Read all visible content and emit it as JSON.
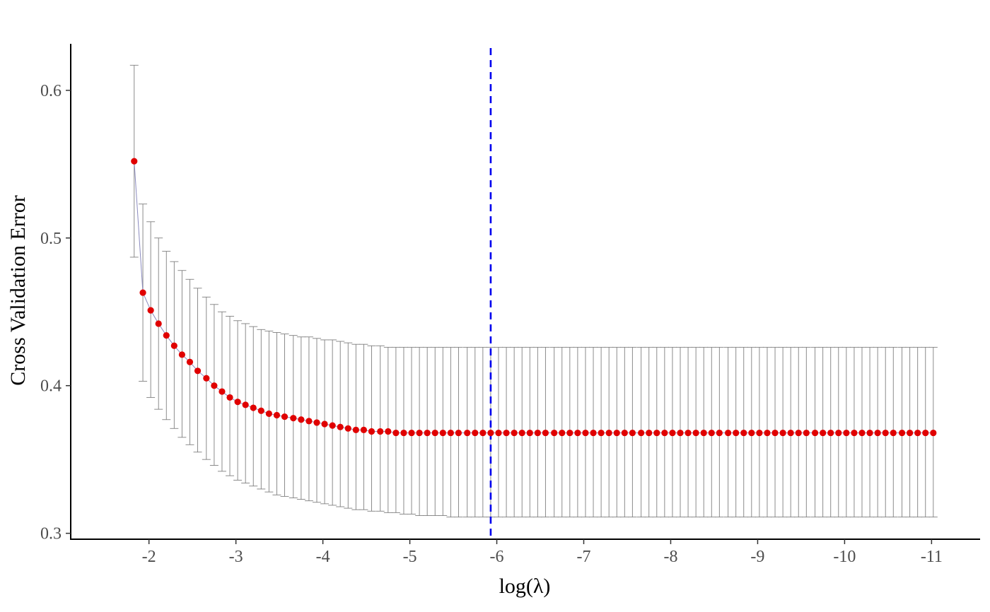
{
  "chart_data": {
    "type": "scatter",
    "title": "",
    "xlabel": "log(λ)",
    "ylabel": "Cross Validation Error",
    "x_axis": {
      "reversed": true,
      "range": [
        -1.1,
        -11.55
      ],
      "ticks": [
        -2,
        -3,
        -4,
        -5,
        -6,
        -7,
        -8,
        -9,
        -10,
        -11
      ],
      "tick_labels": [
        "-2",
        "-3",
        "-4",
        "-5",
        "-6",
        "-7",
        "-8",
        "-9",
        "-10",
        "-11"
      ]
    },
    "y_axis": {
      "range": [
        0.296,
        0.6315
      ],
      "ticks": [
        0.3,
        0.4,
        0.5,
        0.6
      ],
      "tick_labels": [
        "0.3",
        "0.4",
        "0.5",
        "0.6"
      ]
    },
    "grid": false,
    "legend": "none",
    "reference_line": {
      "x": -5.93,
      "style": "dashed",
      "color": "#0000ee"
    },
    "colors": {
      "points": "#e00000",
      "error_bars": "#7f7f7f",
      "connector": "#8b8bbf",
      "axes": "#000000",
      "tick_labels": "#4d4d4d"
    },
    "series": [
      {
        "x": [
          -1.83,
          -1.93,
          -2.02,
          -2.11,
          -2.2,
          -2.29,
          -2.38,
          -2.47,
          -2.56,
          -2.66,
          -2.75,
          -2.84,
          -2.93,
          -3.02,
          -3.11,
          -3.2,
          -3.29,
          -3.38,
          -3.47,
          -3.56,
          -3.66,
          -3.75,
          -3.84,
          -3.93,
          -4.02,
          -4.11,
          -4.2,
          -4.29,
          -4.38,
          -4.47,
          -4.56,
          -4.66,
          -4.75,
          -4.84,
          -4.93,
          -5.02,
          -5.11,
          -5.2,
          -5.29,
          -5.38,
          -5.47,
          -5.56,
          -5.66,
          -5.75,
          -5.84,
          -5.93,
          -6.02,
          -6.11,
          -6.2,
          -6.29,
          -6.38,
          -6.47,
          -6.56,
          -6.66,
          -6.75,
          -6.84,
          -6.93,
          -7.02,
          -7.11,
          -7.2,
          -7.29,
          -7.38,
          -7.47,
          -7.56,
          -7.66,
          -7.75,
          -7.84,
          -7.93,
          -8.02,
          -8.11,
          -8.2,
          -8.29,
          -8.38,
          -8.47,
          -8.56,
          -8.66,
          -8.75,
          -8.84,
          -8.93,
          -9.02,
          -9.11,
          -9.2,
          -9.29,
          -9.38,
          -9.47,
          -9.56,
          -9.66,
          -9.75,
          -9.84,
          -9.93,
          -10.02,
          -10.11,
          -10.2,
          -10.29,
          -10.38,
          -10.47,
          -10.56,
          -10.66,
          -10.75,
          -10.84,
          -10.93,
          -11.02
        ],
        "y": [
          0.552,
          0.463,
          0.451,
          0.442,
          0.434,
          0.427,
          0.421,
          0.416,
          0.41,
          0.405,
          0.4,
          0.396,
          0.392,
          0.389,
          0.387,
          0.385,
          0.383,
          0.381,
          0.38,
          0.379,
          0.378,
          0.377,
          0.376,
          0.375,
          0.374,
          0.373,
          0.372,
          0.371,
          0.37,
          0.37,
          0.369,
          0.369,
          0.369,
          0.368,
          0.368,
          0.368,
          0.368,
          0.368,
          0.368,
          0.368,
          0.368,
          0.368,
          0.368,
          0.368,
          0.368,
          0.368,
          0.368,
          0.368,
          0.368,
          0.368,
          0.368,
          0.368,
          0.368,
          0.368,
          0.368,
          0.368,
          0.368,
          0.368,
          0.368,
          0.368,
          0.368,
          0.368,
          0.368,
          0.368,
          0.368,
          0.368,
          0.368,
          0.368,
          0.368,
          0.368,
          0.368,
          0.368,
          0.368,
          0.368,
          0.368,
          0.368,
          0.368,
          0.368,
          0.368,
          0.368,
          0.368,
          0.368,
          0.368,
          0.368,
          0.368,
          0.368,
          0.368,
          0.368,
          0.368,
          0.368,
          0.368,
          0.368,
          0.368,
          0.368,
          0.368,
          0.368,
          0.368,
          0.368,
          0.368,
          0.368,
          0.368,
          0.368
        ],
        "upper": [
          0.617,
          0.523,
          0.511,
          0.5,
          0.491,
          0.484,
          0.478,
          0.472,
          0.466,
          0.46,
          0.455,
          0.45,
          0.447,
          0.444,
          0.442,
          0.44,
          0.438,
          0.437,
          0.436,
          0.435,
          0.434,
          0.433,
          0.433,
          0.432,
          0.431,
          0.431,
          0.43,
          0.429,
          0.428,
          0.428,
          0.427,
          0.427,
          0.426,
          0.426,
          0.426,
          0.426,
          0.426,
          0.426,
          0.426,
          0.426,
          0.426,
          0.426,
          0.426,
          0.426,
          0.426,
          0.426,
          0.426,
          0.426,
          0.426,
          0.426,
          0.426,
          0.426,
          0.426,
          0.426,
          0.426,
          0.426,
          0.426,
          0.426,
          0.426,
          0.426,
          0.426,
          0.426,
          0.426,
          0.426,
          0.426,
          0.426,
          0.426,
          0.426,
          0.426,
          0.426,
          0.426,
          0.426,
          0.426,
          0.426,
          0.426,
          0.426,
          0.426,
          0.426,
          0.426,
          0.426,
          0.426,
          0.426,
          0.426,
          0.426,
          0.426,
          0.426,
          0.426,
          0.426,
          0.426,
          0.426,
          0.426,
          0.426,
          0.426,
          0.426,
          0.426,
          0.426,
          0.426,
          0.426,
          0.426,
          0.426,
          0.426,
          0.426
        ],
        "lower": [
          0.487,
          0.403,
          0.392,
          0.384,
          0.377,
          0.371,
          0.365,
          0.36,
          0.355,
          0.35,
          0.346,
          0.342,
          0.339,
          0.336,
          0.334,
          0.332,
          0.33,
          0.328,
          0.326,
          0.325,
          0.324,
          0.323,
          0.322,
          0.321,
          0.32,
          0.319,
          0.318,
          0.317,
          0.316,
          0.316,
          0.315,
          0.315,
          0.314,
          0.314,
          0.313,
          0.313,
          0.312,
          0.312,
          0.312,
          0.312,
          0.311,
          0.311,
          0.311,
          0.311,
          0.311,
          0.311,
          0.311,
          0.311,
          0.311,
          0.311,
          0.311,
          0.311,
          0.311,
          0.311,
          0.311,
          0.311,
          0.311,
          0.311,
          0.311,
          0.311,
          0.311,
          0.311,
          0.311,
          0.311,
          0.311,
          0.311,
          0.311,
          0.311,
          0.311,
          0.311,
          0.311,
          0.311,
          0.311,
          0.311,
          0.311,
          0.311,
          0.311,
          0.311,
          0.311,
          0.311,
          0.311,
          0.311,
          0.311,
          0.311,
          0.311,
          0.311,
          0.311,
          0.311,
          0.311,
          0.311,
          0.311,
          0.311,
          0.311,
          0.311,
          0.311,
          0.311,
          0.311,
          0.311,
          0.311,
          0.311,
          0.311,
          0.311
        ]
      }
    ]
  }
}
